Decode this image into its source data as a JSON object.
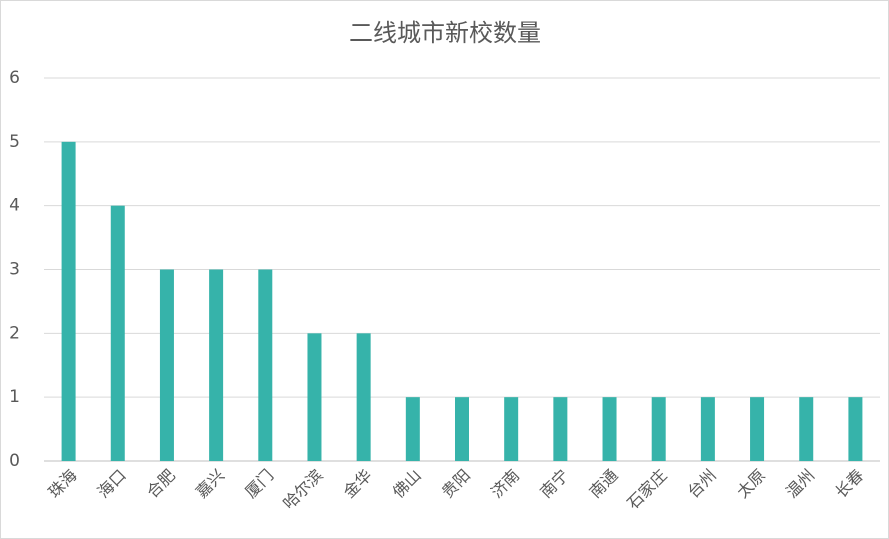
{
  "chart_data": {
    "type": "bar",
    "title": "二线城市新校数量",
    "categories": [
      "珠海",
      "海口",
      "合肥",
      "嘉兴",
      "厦门",
      "哈尔滨",
      "金华",
      "佛山",
      "贵阳",
      "济南",
      "南宁",
      "南通",
      "石家庄",
      "台州",
      "太原",
      "温州",
      "长春"
    ],
    "values": [
      5,
      4,
      3,
      3,
      3,
      2,
      2,
      1,
      1,
      1,
      1,
      1,
      1,
      1,
      1,
      1,
      1
    ],
    "color": "#36b3aa",
    "ylim": [
      0,
      6
    ],
    "yticks": [
      0,
      1,
      2,
      3,
      4,
      5,
      6
    ],
    "grid": true
  }
}
